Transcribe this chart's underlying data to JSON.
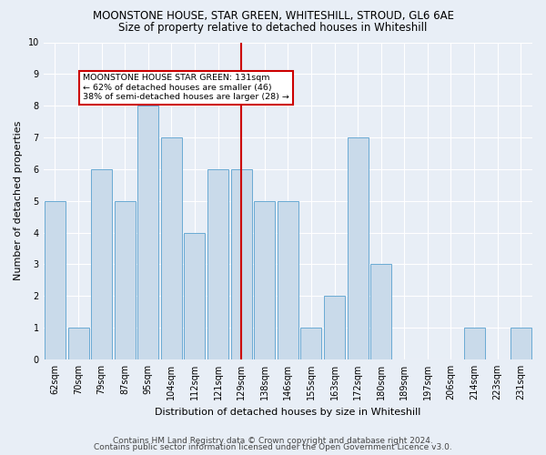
{
  "title": "MOONSTONE HOUSE, STAR GREEN, WHITESHILL, STROUD, GL6 6AE",
  "subtitle": "Size of property relative to detached houses in Whiteshill",
  "xlabel": "Distribution of detached houses by size in Whiteshill",
  "ylabel": "Number of detached properties",
  "footer1": "Contains HM Land Registry data © Crown copyright and database right 2024.",
  "footer2": "Contains public sector information licensed under the Open Government Licence v3.0.",
  "categories": [
    "62sqm",
    "70sqm",
    "79sqm",
    "87sqm",
    "95sqm",
    "104sqm",
    "112sqm",
    "121sqm",
    "129sqm",
    "138sqm",
    "146sqm",
    "155sqm",
    "163sqm",
    "172sqm",
    "180sqm",
    "189sqm",
    "197sqm",
    "206sqm",
    "214sqm",
    "223sqm",
    "231sqm"
  ],
  "values": [
    5,
    1,
    6,
    5,
    8,
    7,
    4,
    6,
    6,
    5,
    5,
    1,
    2,
    7,
    3,
    0,
    0,
    0,
    1,
    0,
    1
  ],
  "bar_color": "#c9daea",
  "bar_edge_color": "#6aaad4",
  "highlight_index": 8,
  "highlight_color": "#cc0000",
  "annotation_text": "MOONSTONE HOUSE STAR GREEN: 131sqm\n← 62% of detached houses are smaller (46)\n38% of semi-detached houses are larger (28) →",
  "annotation_box_color": "#ffffff",
  "annotation_box_edge": "#cc0000",
  "ylim": [
    0,
    10
  ],
  "yticks": [
    0,
    1,
    2,
    3,
    4,
    5,
    6,
    7,
    8,
    9,
    10
  ],
  "bg_color": "#e8eef6",
  "plot_bg_color": "#e8eef6",
  "grid_color": "#ffffff",
  "title_fontsize": 8.5,
  "subtitle_fontsize": 8.5,
  "axis_label_fontsize": 8,
  "tick_fontsize": 7,
  "footer_fontsize": 6.5
}
